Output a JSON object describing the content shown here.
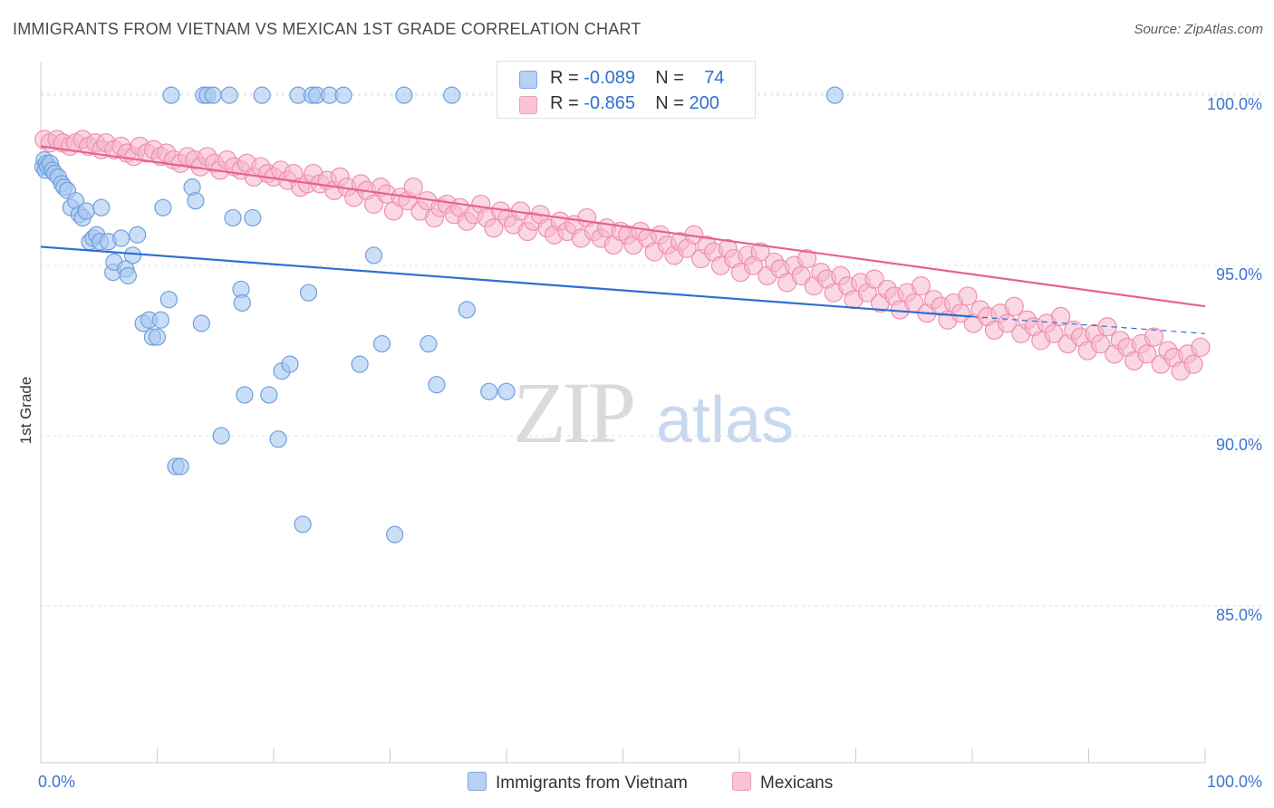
{
  "title": "IMMIGRANTS FROM VIETNAM VS MEXICAN 1ST GRADE CORRELATION CHART",
  "source": "Source: ZipAtlas.com",
  "watermark": {
    "zip": "ZIP",
    "atlas": "atlas"
  },
  "colors": {
    "blue_fill": "#a8c8f2",
    "blue_stroke": "#6f9fdc",
    "blue_line": "#2e6fd0",
    "pink_fill": "#f6b8cc",
    "pink_stroke": "#ee8fae",
    "pink_line": "#e8628e",
    "axis_text": "#3b74cf",
    "grid": "#dcdfe4"
  },
  "legend": {
    "rows": [
      {
        "r_label": "R = ",
        "r_value": "-0.089",
        "n_label": "N = ",
        "n_value": "74"
      },
      {
        "r_label": "R = ",
        "r_value": "-0.865",
        "n_label": "N = ",
        "n_value": "200"
      }
    ]
  },
  "chart_data": {
    "type": "scatter",
    "title": "IMMIGRANTS FROM VIETNAM VS MEXICAN 1ST GRADE CORRELATION CHART",
    "xlabel": "",
    "ylabel": "1st Grade",
    "xlim": [
      0,
      100
    ],
    "ylim": [
      80.4,
      101.2
    ],
    "x_tick_labels": [
      "0.0%",
      "100.0%"
    ],
    "y_ticks": [
      85,
      90,
      95,
      100
    ],
    "y_tick_labels": [
      "85.0%",
      "90.0%",
      "95.0%",
      "100.0%"
    ],
    "grid": true,
    "legend_position": "top-center",
    "series": [
      {
        "name": "Immigrants from Vietnam",
        "color": "#a8c8f2",
        "trend": {
          "x": [
            0,
            80
          ],
          "y": [
            95.55,
            93.5
          ],
          "dashed_to_x": 100,
          "dashed_to_y": 93.0
        },
        "points": [
          [
            0.2,
            97.9
          ],
          [
            0.3,
            98.1
          ],
          [
            0.4,
            97.8
          ],
          [
            0.5,
            98.0
          ],
          [
            0.6,
            97.9
          ],
          [
            0.8,
            98.0
          ],
          [
            1.0,
            97.8
          ],
          [
            1.2,
            97.7
          ],
          [
            1.5,
            97.6
          ],
          [
            1.8,
            97.4
          ],
          [
            2.0,
            97.3
          ],
          [
            2.3,
            97.2
          ],
          [
            2.6,
            96.7
          ],
          [
            3.0,
            96.9
          ],
          [
            3.3,
            96.5
          ],
          [
            3.6,
            96.4
          ],
          [
            3.9,
            96.6
          ],
          [
            4.2,
            95.7
          ],
          [
            4.5,
            95.8
          ],
          [
            4.8,
            95.9
          ],
          [
            5.1,
            95.7
          ],
          [
            5.2,
            96.7
          ],
          [
            5.8,
            95.7
          ],
          [
            6.2,
            94.8
          ],
          [
            6.3,
            95.1
          ],
          [
            6.9,
            95.8
          ],
          [
            7.3,
            94.9
          ],
          [
            7.5,
            94.7
          ],
          [
            7.9,
            95.3
          ],
          [
            8.3,
            95.9
          ],
          [
            8.8,
            93.3
          ],
          [
            9.3,
            93.4
          ],
          [
            9.6,
            92.9
          ],
          [
            10.0,
            92.9
          ],
          [
            10.3,
            93.4
          ],
          [
            10.5,
            96.7
          ],
          [
            11.0,
            94.0
          ],
          [
            11.2,
            100.0
          ],
          [
            11.6,
            89.1
          ],
          [
            12.0,
            89.1
          ],
          [
            13.0,
            97.3
          ],
          [
            13.3,
            96.9
          ],
          [
            13.8,
            93.3
          ],
          [
            14.0,
            100.0
          ],
          [
            14.3,
            100.0
          ],
          [
            14.8,
            100.0
          ],
          [
            15.5,
            90.0
          ],
          [
            16.2,
            100.0
          ],
          [
            16.5,
            96.4
          ],
          [
            17.2,
            94.3
          ],
          [
            17.3,
            93.9
          ],
          [
            17.5,
            91.2
          ],
          [
            18.2,
            96.4
          ],
          [
            19.0,
            100.0
          ],
          [
            19.6,
            91.2
          ],
          [
            20.4,
            89.9
          ],
          [
            20.7,
            91.9
          ],
          [
            21.4,
            92.1
          ],
          [
            22.1,
            100.0
          ],
          [
            22.5,
            87.4
          ],
          [
            23.0,
            94.2
          ],
          [
            23.3,
            100.0
          ],
          [
            23.7,
            100.0
          ],
          [
            24.8,
            100.0
          ],
          [
            26.0,
            100.0
          ],
          [
            27.4,
            92.1
          ],
          [
            28.6,
            95.3
          ],
          [
            29.3,
            92.7
          ],
          [
            30.4,
            87.1
          ],
          [
            31.2,
            100.0
          ],
          [
            33.3,
            92.7
          ],
          [
            34.0,
            91.5
          ],
          [
            35.3,
            100.0
          ],
          [
            36.6,
            93.7
          ],
          [
            38.5,
            91.3
          ],
          [
            40.0,
            91.3
          ],
          [
            40.7,
            100.0
          ],
          [
            68.2,
            100.0
          ]
        ]
      },
      {
        "name": "Mexicans",
        "color": "#f6b8cc",
        "trend": {
          "x": [
            0,
            100
          ],
          "y": [
            98.5,
            93.8
          ]
        },
        "points": [
          [
            0.3,
            98.7
          ],
          [
            0.8,
            98.6
          ],
          [
            1.4,
            98.7
          ],
          [
            1.9,
            98.6
          ],
          [
            2.5,
            98.5
          ],
          [
            3.0,
            98.6
          ],
          [
            3.6,
            98.7
          ],
          [
            4.1,
            98.5
          ],
          [
            4.7,
            98.6
          ],
          [
            5.2,
            98.4
          ],
          [
            5.6,
            98.6
          ],
          [
            6.3,
            98.4
          ],
          [
            6.9,
            98.5
          ],
          [
            7.4,
            98.3
          ],
          [
            8.0,
            98.2
          ],
          [
            8.5,
            98.5
          ],
          [
            9.1,
            98.3
          ],
          [
            9.7,
            98.4
          ],
          [
            10.3,
            98.2
          ],
          [
            10.8,
            98.3
          ],
          [
            11.4,
            98.1
          ],
          [
            12.0,
            98.0
          ],
          [
            12.6,
            98.2
          ],
          [
            13.2,
            98.1
          ],
          [
            13.7,
            97.9
          ],
          [
            14.3,
            98.2
          ],
          [
            14.9,
            98.0
          ],
          [
            15.4,
            97.8
          ],
          [
            16.0,
            98.1
          ],
          [
            16.6,
            97.9
          ],
          [
            17.2,
            97.8
          ],
          [
            17.7,
            98.0
          ],
          [
            18.3,
            97.6
          ],
          [
            18.9,
            97.9
          ],
          [
            19.5,
            97.7
          ],
          [
            20.0,
            97.6
          ],
          [
            20.6,
            97.8
          ],
          [
            21.2,
            97.5
          ],
          [
            21.7,
            97.7
          ],
          [
            22.3,
            97.3
          ],
          [
            22.9,
            97.4
          ],
          [
            23.4,
            97.7
          ],
          [
            24.0,
            97.4
          ],
          [
            24.6,
            97.5
          ],
          [
            25.2,
            97.2
          ],
          [
            25.7,
            97.6
          ],
          [
            26.3,
            97.3
          ],
          [
            26.9,
            97.0
          ],
          [
            27.5,
            97.4
          ],
          [
            28.0,
            97.2
          ],
          [
            28.6,
            96.8
          ],
          [
            29.2,
            97.3
          ],
          [
            29.7,
            97.1
          ],
          [
            30.3,
            96.6
          ],
          [
            30.9,
            97.0
          ],
          [
            31.5,
            96.9
          ],
          [
            32.0,
            97.3
          ],
          [
            32.6,
            96.6
          ],
          [
            33.2,
            96.9
          ],
          [
            33.8,
            96.4
          ],
          [
            34.3,
            96.7
          ],
          [
            34.9,
            96.8
          ],
          [
            35.5,
            96.5
          ],
          [
            36.0,
            96.7
          ],
          [
            36.6,
            96.3
          ],
          [
            37.2,
            96.5
          ],
          [
            37.8,
            96.8
          ],
          [
            38.3,
            96.4
          ],
          [
            38.9,
            96.1
          ],
          [
            39.5,
            96.6
          ],
          [
            40.1,
            96.4
          ],
          [
            40.6,
            96.2
          ],
          [
            41.2,
            96.6
          ],
          [
            41.8,
            96.0
          ],
          [
            42.3,
            96.3
          ],
          [
            42.9,
            96.5
          ],
          [
            43.5,
            96.1
          ],
          [
            44.1,
            95.9
          ],
          [
            44.6,
            96.3
          ],
          [
            45.2,
            96.0
          ],
          [
            45.8,
            96.2
          ],
          [
            46.4,
            95.8
          ],
          [
            46.9,
            96.4
          ],
          [
            47.5,
            96.0
          ],
          [
            48.1,
            95.8
          ],
          [
            48.6,
            96.1
          ],
          [
            49.2,
            95.6
          ],
          [
            49.8,
            96.0
          ],
          [
            50.4,
            95.9
          ],
          [
            50.9,
            95.6
          ],
          [
            51.5,
            96.0
          ],
          [
            52.1,
            95.8
          ],
          [
            52.7,
            95.4
          ],
          [
            53.2,
            95.9
          ],
          [
            53.8,
            95.6
          ],
          [
            54.4,
            95.3
          ],
          [
            54.9,
            95.7
          ],
          [
            55.5,
            95.5
          ],
          [
            56.1,
            95.9
          ],
          [
            56.7,
            95.2
          ],
          [
            57.2,
            95.6
          ],
          [
            57.8,
            95.4
          ],
          [
            58.4,
            95.0
          ],
          [
            59.0,
            95.5
          ],
          [
            59.5,
            95.2
          ],
          [
            60.1,
            94.8
          ],
          [
            60.7,
            95.3
          ],
          [
            61.2,
            95.0
          ],
          [
            61.8,
            95.4
          ],
          [
            62.4,
            94.7
          ],
          [
            63.0,
            95.1
          ],
          [
            63.5,
            94.9
          ],
          [
            64.1,
            94.5
          ],
          [
            64.7,
            95.0
          ],
          [
            65.3,
            94.7
          ],
          [
            65.8,
            95.2
          ],
          [
            66.4,
            94.4
          ],
          [
            67.0,
            94.8
          ],
          [
            67.5,
            94.6
          ],
          [
            68.1,
            94.2
          ],
          [
            68.7,
            94.7
          ],
          [
            69.3,
            94.4
          ],
          [
            69.8,
            94.0
          ],
          [
            70.4,
            94.5
          ],
          [
            71.0,
            94.2
          ],
          [
            71.6,
            94.6
          ],
          [
            72.1,
            93.9
          ],
          [
            72.7,
            94.3
          ],
          [
            73.3,
            94.1
          ],
          [
            73.8,
            93.7
          ],
          [
            74.4,
            94.2
          ],
          [
            75.0,
            93.9
          ],
          [
            75.6,
            94.4
          ],
          [
            76.1,
            93.6
          ],
          [
            76.7,
            94.0
          ],
          [
            77.3,
            93.8
          ],
          [
            77.9,
            93.4
          ],
          [
            78.4,
            93.9
          ],
          [
            79.0,
            93.6
          ],
          [
            79.6,
            94.1
          ],
          [
            80.1,
            93.3
          ],
          [
            80.7,
            93.7
          ],
          [
            81.3,
            93.5
          ],
          [
            81.9,
            93.1
          ],
          [
            82.4,
            93.6
          ],
          [
            83.0,
            93.3
          ],
          [
            83.6,
            93.8
          ],
          [
            84.2,
            93.0
          ],
          [
            84.7,
            93.4
          ],
          [
            85.3,
            93.2
          ],
          [
            85.9,
            92.8
          ],
          [
            86.4,
            93.3
          ],
          [
            87.0,
            93.0
          ],
          [
            87.6,
            93.5
          ],
          [
            88.2,
            92.7
          ],
          [
            88.7,
            93.1
          ],
          [
            89.3,
            92.9
          ],
          [
            89.9,
            92.5
          ],
          [
            90.5,
            93.0
          ],
          [
            91.0,
            92.7
          ],
          [
            91.6,
            93.2
          ],
          [
            92.2,
            92.4
          ],
          [
            92.7,
            92.8
          ],
          [
            93.3,
            92.6
          ],
          [
            93.9,
            92.2
          ],
          [
            94.5,
            92.7
          ],
          [
            95.0,
            92.4
          ],
          [
            95.6,
            92.9
          ],
          [
            96.2,
            92.1
          ],
          [
            96.8,
            92.5
          ],
          [
            97.3,
            92.3
          ],
          [
            97.9,
            91.9
          ],
          [
            98.5,
            92.4
          ],
          [
            99.0,
            92.1
          ],
          [
            99.6,
            92.6
          ]
        ]
      }
    ]
  },
  "bottom_legend": [
    "Immigrants from Vietnam",
    "Mexicans"
  ]
}
